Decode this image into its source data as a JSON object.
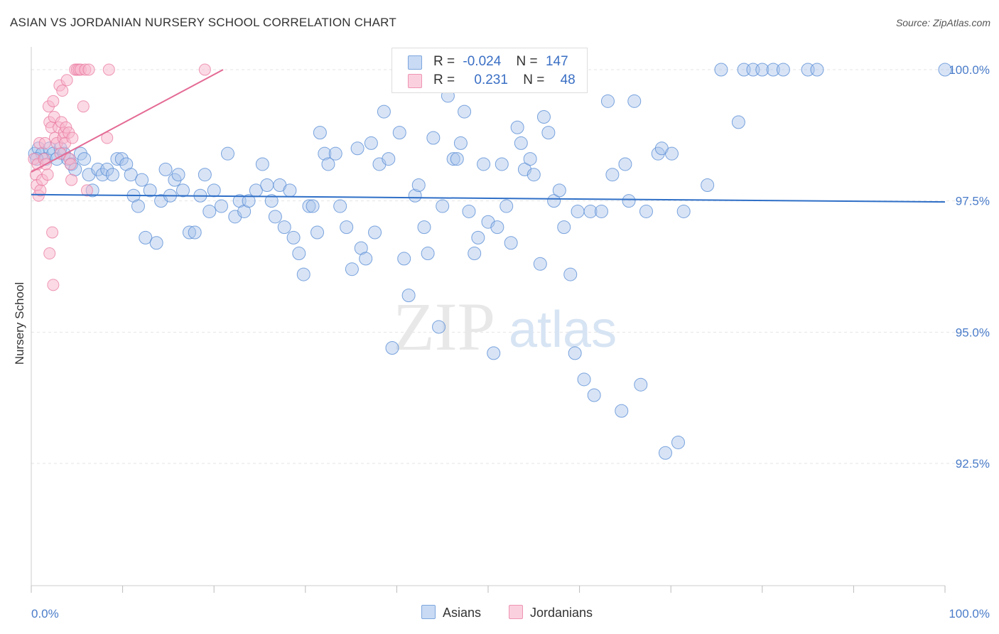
{
  "title": "ASIAN VS JORDANIAN NURSERY SCHOOL CORRELATION CHART",
  "source": "Source: ZipAtlas.com",
  "watermark": {
    "zip": "ZIP",
    "atlas": "atlas"
  },
  "colors": {
    "asian_fill": "#a9c4ec",
    "asian_stroke": "#5b8fd6",
    "asian_line": "#2f6fc7",
    "jordan_fill": "#f7b6cb",
    "jordan_stroke": "#e97aa0",
    "jordan_line": "#e46a95",
    "tick_label": "#4a7cc9",
    "grid": "#e4e4e4"
  },
  "legend": {
    "rows": [
      {
        "r_label": "R =",
        "r_value": "-0.024",
        "n_label": "N =",
        "n_value": "147"
      },
      {
        "r_label": "R =",
        "r_value": "0.231",
        "n_label": "N =",
        "n_value": "48"
      }
    ],
    "bottom": [
      "Asians",
      "Jordanians"
    ]
  },
  "chart_data": {
    "type": "scatter",
    "title": "ASIAN VS JORDANIAN NURSERY SCHOOL CORRELATION CHART",
    "xlabel": "",
    "ylabel": "Nursery School",
    "xlim": [
      0,
      100
    ],
    "ylim": [
      91.0,
      100.3
    ],
    "x_tick_labels": [
      "0.0%",
      "100.0%"
    ],
    "y_ticks": [
      92.5,
      95.0,
      97.5,
      100.0
    ],
    "y_tick_labels": [
      "92.5%",
      "95.0%",
      "97.5%",
      "100.0%"
    ],
    "grid": true,
    "legend_placement": "top-center",
    "series": [
      {
        "name": "Asians",
        "r": -0.024,
        "n": 147,
        "trend": {
          "x": [
            0,
            100
          ],
          "y": [
            97.62,
            97.48
          ]
        },
        "points": [
          [
            0.4,
            98.4
          ],
          [
            0.8,
            98.5
          ],
          [
            1.2,
            98.4
          ],
          [
            1.6,
            98.3
          ],
          [
            2.0,
            98.5
          ],
          [
            2.4,
            98.4
          ],
          [
            2.8,
            98.3
          ],
          [
            3.2,
            98.5
          ],
          [
            3.6,
            98.4
          ],
          [
            4.0,
            98.3
          ],
          [
            4.4,
            98.2
          ],
          [
            4.8,
            98.1
          ],
          [
            5.4,
            98.4
          ],
          [
            5.8,
            98.3
          ],
          [
            6.3,
            98.0
          ],
          [
            6.7,
            97.7
          ],
          [
            7.3,
            98.1
          ],
          [
            7.8,
            98.0
          ],
          [
            8.3,
            98.1
          ],
          [
            8.9,
            98.0
          ],
          [
            9.4,
            98.3
          ],
          [
            9.9,
            98.3
          ],
          [
            10.4,
            98.2
          ],
          [
            10.9,
            98.0
          ],
          [
            11.2,
            97.6
          ],
          [
            11.7,
            97.4
          ],
          [
            12.1,
            97.9
          ],
          [
            12.5,
            96.8
          ],
          [
            13.0,
            97.7
          ],
          [
            13.7,
            96.7
          ],
          [
            14.2,
            97.5
          ],
          [
            14.7,
            98.1
          ],
          [
            15.2,
            97.6
          ],
          [
            15.7,
            97.9
          ],
          [
            16.1,
            98.0
          ],
          [
            16.6,
            97.7
          ],
          [
            17.3,
            96.9
          ],
          [
            17.9,
            96.9
          ],
          [
            18.5,
            97.6
          ],
          [
            19.0,
            98.0
          ],
          [
            19.5,
            97.3
          ],
          [
            20.0,
            97.7
          ],
          [
            20.8,
            97.4
          ],
          [
            21.5,
            98.4
          ],
          [
            22.3,
            97.2
          ],
          [
            22.8,
            97.5
          ],
          [
            23.3,
            97.3
          ],
          [
            23.8,
            97.5
          ],
          [
            24.6,
            97.7
          ],
          [
            25.3,
            98.2
          ],
          [
            25.8,
            97.8
          ],
          [
            26.3,
            97.5
          ],
          [
            26.7,
            97.2
          ],
          [
            27.2,
            97.8
          ],
          [
            27.7,
            97.0
          ],
          [
            28.3,
            97.7
          ],
          [
            28.7,
            96.8
          ],
          [
            29.3,
            96.5
          ],
          [
            29.8,
            96.1
          ],
          [
            30.4,
            97.4
          ],
          [
            30.8,
            97.4
          ],
          [
            31.3,
            96.9
          ],
          [
            31.6,
            98.8
          ],
          [
            32.1,
            98.4
          ],
          [
            32.5,
            98.2
          ],
          [
            33.3,
            98.4
          ],
          [
            33.8,
            97.4
          ],
          [
            34.5,
            97.0
          ],
          [
            35.1,
            96.2
          ],
          [
            35.7,
            98.5
          ],
          [
            36.1,
            96.6
          ],
          [
            36.6,
            96.4
          ],
          [
            37.2,
            98.6
          ],
          [
            37.6,
            96.9
          ],
          [
            38.1,
            98.2
          ],
          [
            38.6,
            99.2
          ],
          [
            39.1,
            98.3
          ],
          [
            39.5,
            94.7
          ],
          [
            40.3,
            98.8
          ],
          [
            40.8,
            96.4
          ],
          [
            41.3,
            95.7
          ],
          [
            42.0,
            97.6
          ],
          [
            42.4,
            97.8
          ],
          [
            43.0,
            97.0
          ],
          [
            43.4,
            96.5
          ],
          [
            44.0,
            98.7
          ],
          [
            44.6,
            95.1
          ],
          [
            45.0,
            97.4
          ],
          [
            45.6,
            99.5
          ],
          [
            46.2,
            98.3
          ],
          [
            46.6,
            98.3
          ],
          [
            47.0,
            98.6
          ],
          [
            47.4,
            99.2
          ],
          [
            47.9,
            97.3
          ],
          [
            48.5,
            96.5
          ],
          [
            48.9,
            96.8
          ],
          [
            49.5,
            98.2
          ],
          [
            50.0,
            97.1
          ],
          [
            50.6,
            94.6
          ],
          [
            51.0,
            97.0
          ],
          [
            51.5,
            98.2
          ],
          [
            52.0,
            97.4
          ],
          [
            52.5,
            96.7
          ],
          [
            53.2,
            98.9
          ],
          [
            53.6,
            98.6
          ],
          [
            54.0,
            98.1
          ],
          [
            54.6,
            98.3
          ],
          [
            55.0,
            98.0
          ],
          [
            55.7,
            96.3
          ],
          [
            56.1,
            99.1
          ],
          [
            56.6,
            98.8
          ],
          [
            57.2,
            97.5
          ],
          [
            57.8,
            97.7
          ],
          [
            58.3,
            97.0
          ],
          [
            59.0,
            96.1
          ],
          [
            59.5,
            94.6
          ],
          [
            59.8,
            97.3
          ],
          [
            60.5,
            94.1
          ],
          [
            61.2,
            97.3
          ],
          [
            61.6,
            93.8
          ],
          [
            62.4,
            97.3
          ],
          [
            63.1,
            99.4
          ],
          [
            63.6,
            98.0
          ],
          [
            64.6,
            93.5
          ],
          [
            65.0,
            98.2
          ],
          [
            65.4,
            97.5
          ],
          [
            66.0,
            99.4
          ],
          [
            66.7,
            94.0
          ],
          [
            67.3,
            97.3
          ],
          [
            68.6,
            98.4
          ],
          [
            69.0,
            98.5
          ],
          [
            69.4,
            92.7
          ],
          [
            70.1,
            98.4
          ],
          [
            70.8,
            92.9
          ],
          [
            71.4,
            97.3
          ],
          [
            74.0,
            97.8
          ],
          [
            75.5,
            100.0
          ],
          [
            77.4,
            99.0
          ],
          [
            78.0,
            100.0
          ],
          [
            79.0,
            100.0
          ],
          [
            80.0,
            100.0
          ],
          [
            81.2,
            100.0
          ],
          [
            82.3,
            100.0
          ],
          [
            85.0,
            100.0
          ],
          [
            86.0,
            100.0
          ],
          [
            100.0,
            100.0
          ],
          [
            0.6,
            98.3
          ]
        ]
      },
      {
        "name": "Jordanians",
        "r": 0.231,
        "n": 48,
        "trend": {
          "x": [
            0,
            21
          ],
          "y": [
            98.05,
            100.0
          ]
        },
        "points": [
          [
            0.3,
            98.3
          ],
          [
            0.5,
            98.0
          ],
          [
            0.6,
            97.8
          ],
          [
            0.7,
            98.2
          ],
          [
            0.8,
            97.6
          ],
          [
            0.9,
            98.6
          ],
          [
            1.0,
            97.7
          ],
          [
            1.2,
            97.9
          ],
          [
            1.4,
            98.3
          ],
          [
            1.5,
            98.6
          ],
          [
            1.6,
            98.2
          ],
          [
            1.8,
            98.0
          ],
          [
            1.9,
            99.3
          ],
          [
            2.0,
            99.0
          ],
          [
            2.2,
            98.9
          ],
          [
            2.4,
            99.4
          ],
          [
            2.5,
            99.1
          ],
          [
            2.6,
            98.7
          ],
          [
            2.8,
            98.6
          ],
          [
            3.0,
            98.9
          ],
          [
            3.1,
            99.7
          ],
          [
            3.2,
            98.4
          ],
          [
            3.3,
            99.0
          ],
          [
            3.4,
            99.6
          ],
          [
            3.5,
            98.7
          ],
          [
            3.6,
            98.8
          ],
          [
            3.7,
            98.6
          ],
          [
            3.8,
            98.9
          ],
          [
            3.9,
            99.8
          ],
          [
            4.1,
            98.8
          ],
          [
            4.2,
            98.3
          ],
          [
            4.3,
            98.2
          ],
          [
            4.4,
            97.9
          ],
          [
            4.5,
            98.7
          ],
          [
            4.8,
            100.0
          ],
          [
            5.0,
            100.0
          ],
          [
            5.2,
            100.0
          ],
          [
            5.4,
            100.0
          ],
          [
            5.7,
            99.3
          ],
          [
            5.9,
            100.0
          ],
          [
            6.1,
            97.7
          ],
          [
            6.3,
            100.0
          ],
          [
            8.3,
            98.7
          ],
          [
            8.5,
            100.0
          ],
          [
            19.0,
            100.0
          ],
          [
            2.0,
            96.5
          ],
          [
            2.3,
            96.9
          ],
          [
            2.4,
            95.9
          ]
        ]
      }
    ]
  }
}
